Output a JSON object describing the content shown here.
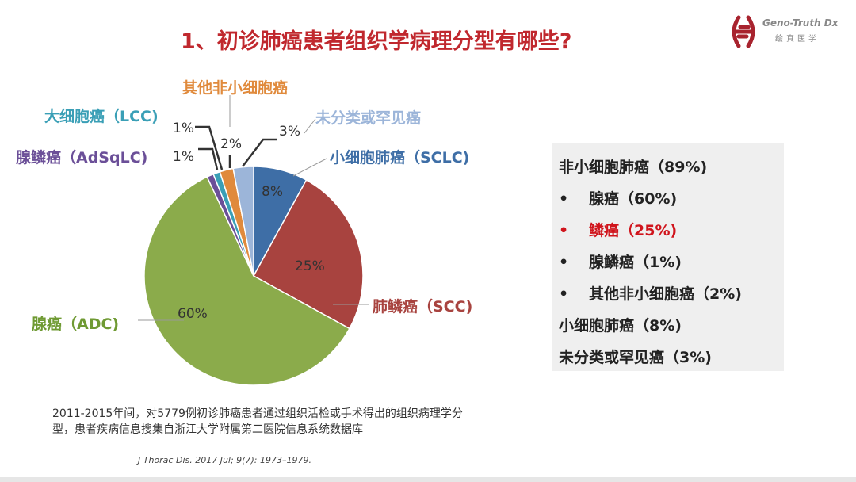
{
  "title": "1、初诊肺癌患者组织学病理分型有哪些?",
  "logo": {
    "name": "Geno-Truth Dx",
    "sub": "绘真医学",
    "color": "#a8232e"
  },
  "chart_data": {
    "type": "pie",
    "start": "12 o'clock, clockwise",
    "slices": [
      {
        "label": "小细胞肺癌（SCLC)",
        "value": 8,
        "display": "8%",
        "color": "#3e6ea6"
      },
      {
        "label": "肺鳞癌（SCC)",
        "value": 25,
        "display": "25%",
        "color": "#a8433f"
      },
      {
        "label": "腺癌（ADC)",
        "value": 60,
        "display": "60%",
        "color": "#8bab4b"
      },
      {
        "label": "腺鳞癌（AdSqLC)",
        "value": 1,
        "display": "1%",
        "color": "#6b4f98"
      },
      {
        "label": "大细胞癌（LCC)",
        "value": 1,
        "display": "1%",
        "color": "#3a9fb6"
      },
      {
        "label": "其他非小细胞癌",
        "value": 2,
        "display": "2%",
        "color": "#e08a3c"
      },
      {
        "label": "未分类或罕见癌",
        "value": 3,
        "display": "3%",
        "color": "#9cb5d9"
      }
    ]
  },
  "summary": [
    {
      "text": "非小细胞肺癌（89%)",
      "bullet": "",
      "color": "#222"
    },
    {
      "text": "腺癌（60%)",
      "bullet": "•",
      "color": "#222"
    },
    {
      "text": "鳞癌（25%)",
      "bullet": "•",
      "color": "#d0141c"
    },
    {
      "text": "腺鳞癌（1%)",
      "bullet": "•",
      "color": "#222"
    },
    {
      "text": "其他非小细胞癌（2%)",
      "bullet": "•",
      "color": "#222"
    },
    {
      "text": "小细胞肺癌（8%)",
      "bullet": "",
      "color": "#222"
    },
    {
      "text": "未分类或罕见癌（3%)",
      "bullet": "",
      "color": "#222"
    }
  ],
  "note": "2011-2015年间，对5779例初诊肺癌患者通过组织活检或手术得出的组织病理学分型，患者疾病信息搜集自浙江大学附属第二医院信息系统数据库",
  "reference": "J Thorac Dis. 2017 Jul; 9(7): 1973–1979."
}
